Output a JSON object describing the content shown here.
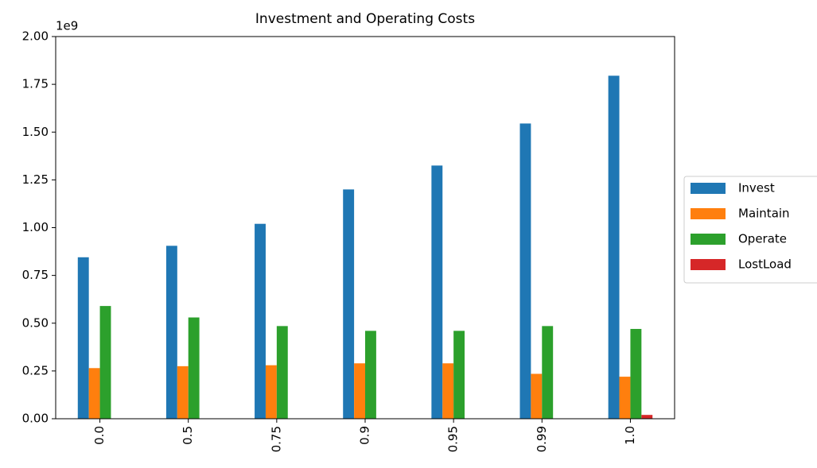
{
  "chart_data": {
    "type": "bar",
    "title": "Investment and Operating Costs",
    "y_offset_label": "1e9",
    "categories": [
      "0.0",
      "0.5",
      "0.75",
      "0.9",
      "0.95",
      "0.99",
      "1.0"
    ],
    "series": [
      {
        "name": "Invest",
        "color": "#1f77b4",
        "values": [
          0.845,
          0.905,
          1.02,
          1.2,
          1.325,
          1.545,
          1.795
        ]
      },
      {
        "name": "Maintain",
        "color": "#ff7f0e",
        "values": [
          0.265,
          0.275,
          0.28,
          0.29,
          0.29,
          0.235,
          0.22
        ]
      },
      {
        "name": "Operate",
        "color": "#2ca02c",
        "values": [
          0.59,
          0.53,
          0.485,
          0.46,
          0.46,
          0.485,
          0.47
        ]
      },
      {
        "name": "LostLoad",
        "color": "#d62728",
        "values": [
          0,
          0,
          0,
          0,
          0,
          0,
          0.02
        ]
      }
    ],
    "ylim": [
      0,
      2
    ],
    "yticks": [
      {
        "value": 0,
        "label": "0.00"
      },
      0.25,
      {
        "value": 0.5,
        "label": "0.50"
      },
      0.75,
      {
        "value": 1,
        "label": "1.00"
      },
      1.25,
      {
        "value": 1.5,
        "label": "1.50"
      },
      1.75,
      {
        "value": 2,
        "label": "2.00"
      }
    ],
    "grid": false,
    "legend": "right"
  }
}
